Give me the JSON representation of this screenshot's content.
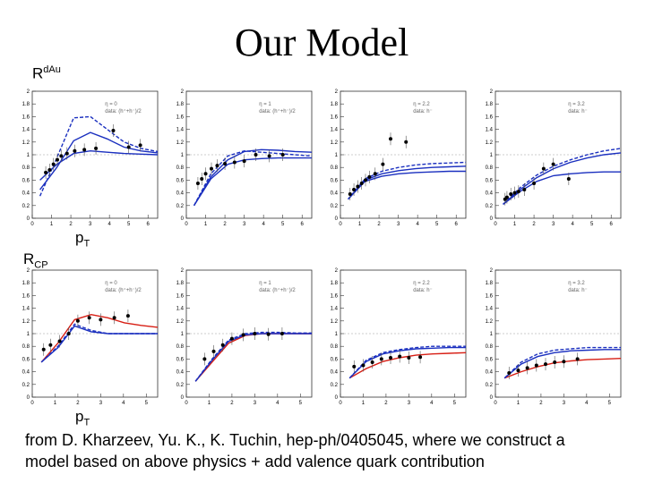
{
  "title": "Our Model",
  "labels": {
    "rdau_main": "R",
    "rdau_sup": "dAu",
    "rcp_main": "R",
    "rcp_sub": "CP",
    "pt_main": "p",
    "pt_sub": "T"
  },
  "caption": {
    "line1": "from D. Kharzeev, Yu. K., K. Tuchin, hep-ph/0405045, where we construct a",
    "line2": "model based on above physics + add valence quark contribution"
  },
  "axis": {
    "y_ticks": [
      "0",
      "0.2",
      "0.4",
      "0.6",
      "0.8",
      "1",
      "1.2",
      "1.4",
      "1.6",
      "1.8",
      "2"
    ],
    "x_ticks": [
      "0",
      "1",
      "2",
      "3",
      "4",
      "5",
      "6"
    ],
    "x_ticks_row2": [
      "0",
      "1",
      "2",
      "3",
      "4",
      "5"
    ]
  },
  "chart_data": [
    {
      "type": "scatter",
      "name": "rdau-eta-0",
      "legend": [
        "η = 0",
        "data: (h⁺+h⁻)/2"
      ],
      "ylim": [
        0,
        2
      ],
      "xlim": [
        0,
        6.5
      ],
      "points": [
        [
          0.7,
          0.72
        ],
        [
          0.9,
          0.76
        ],
        [
          1.1,
          0.85
        ],
        [
          1.3,
          0.92
        ],
        [
          1.5,
          0.98
        ],
        [
          1.8,
          1.02
        ],
        [
          2.2,
          1.06
        ],
        [
          2.7,
          1.08
        ],
        [
          3.3,
          1.1
        ],
        [
          4.2,
          1.38
        ],
        [
          5.0,
          1.12
        ],
        [
          5.6,
          1.15
        ]
      ],
      "curves": [
        {
          "color": "#1a2fbf",
          "style": "solid",
          "y": [
            0.45,
            0.8,
            1.22,
            1.35,
            1.25,
            1.12,
            1.06,
            1.03
          ]
        },
        {
          "color": "#1a2fbf",
          "style": "dashed",
          "y": [
            0.35,
            0.95,
            1.58,
            1.6,
            1.4,
            1.2,
            1.1,
            1.05
          ]
        },
        {
          "color": "#1a2fbf",
          "style": "solid",
          "y": [
            0.6,
            0.85,
            1.02,
            1.06,
            1.04,
            1.02,
            1.01,
            1.0
          ]
        }
      ]
    },
    {
      "type": "scatter",
      "name": "rdau-eta-1",
      "legend": [
        "η = 1",
        "data: (h⁺+h⁻)/2"
      ],
      "ylim": [
        0,
        2
      ],
      "xlim": [
        0,
        6.5
      ],
      "points": [
        [
          0.6,
          0.55
        ],
        [
          0.8,
          0.62
        ],
        [
          1.0,
          0.7
        ],
        [
          1.3,
          0.78
        ],
        [
          1.6,
          0.83
        ],
        [
          2.0,
          0.86
        ],
        [
          2.5,
          0.88
        ],
        [
          3.0,
          0.9
        ],
        [
          3.6,
          1.0
        ],
        [
          4.3,
          0.98
        ],
        [
          5.0,
          1.0
        ]
      ],
      "curves": [
        {
          "color": "#1a2fbf",
          "style": "solid",
          "y": [
            0.2,
            0.65,
            0.92,
            1.05,
            1.08,
            1.07,
            1.05,
            1.04
          ]
        },
        {
          "color": "#1a2fbf",
          "style": "dashed",
          "y": [
            0.2,
            0.7,
            0.98,
            1.06,
            1.04,
            1.02,
            1.0,
            0.98
          ]
        },
        {
          "color": "#1a2fbf",
          "style": "solid",
          "y": [
            0.2,
            0.62,
            0.85,
            0.92,
            0.94,
            0.95,
            0.95,
            0.95
          ]
        }
      ]
    },
    {
      "type": "scatter",
      "name": "rdau-eta-2.2",
      "legend": [
        "η = 2.2",
        "data: h⁻"
      ],
      "ylim": [
        0,
        2
      ],
      "xlim": [
        0,
        6.5
      ],
      "points": [
        [
          0.5,
          0.38
        ],
        [
          0.7,
          0.45
        ],
        [
          0.9,
          0.5
        ],
        [
          1.1,
          0.55
        ],
        [
          1.3,
          0.6
        ],
        [
          1.5,
          0.65
        ],
        [
          1.8,
          0.7
        ],
        [
          2.2,
          0.85
        ],
        [
          2.6,
          1.25
        ],
        [
          3.4,
          1.2
        ]
      ],
      "curves": [
        {
          "color": "#1a2fbf",
          "style": "dashed",
          "y": [
            0.3,
            0.62,
            0.74,
            0.8,
            0.84,
            0.86,
            0.87,
            0.88
          ]
        },
        {
          "color": "#1a2fbf",
          "style": "solid",
          "y": [
            0.3,
            0.6,
            0.7,
            0.75,
            0.78,
            0.8,
            0.81,
            0.82
          ]
        },
        {
          "color": "#1a2fbf",
          "style": "solid",
          "y": [
            0.3,
            0.58,
            0.66,
            0.7,
            0.72,
            0.73,
            0.74,
            0.74
          ]
        }
      ]
    },
    {
      "type": "scatter",
      "name": "rdau-eta-3.2",
      "legend": [
        "η = 3.2",
        "data: h⁻"
      ],
      "ylim": [
        0,
        2
      ],
      "xlim": [
        0,
        6.5
      ],
      "points": [
        [
          0.5,
          0.3
        ],
        [
          0.6,
          0.33
        ],
        [
          0.8,
          0.38
        ],
        [
          1.0,
          0.4
        ],
        [
          1.2,
          0.42
        ],
        [
          1.5,
          0.45
        ],
        [
          2.0,
          0.55
        ],
        [
          2.5,
          0.78
        ],
        [
          3.0,
          0.85
        ],
        [
          3.8,
          0.62
        ]
      ],
      "curves": [
        {
          "color": "#1a2fbf",
          "style": "dashed",
          "y": [
            0.22,
            0.48,
            0.68,
            0.82,
            0.92,
            1.0,
            1.06,
            1.1
          ]
        },
        {
          "color": "#1a2fbf",
          "style": "solid",
          "y": [
            0.22,
            0.45,
            0.64,
            0.78,
            0.88,
            0.95,
            1.0,
            1.03
          ]
        },
        {
          "color": "#1a2fbf",
          "style": "solid",
          "y": [
            0.22,
            0.42,
            0.58,
            0.67,
            0.7,
            0.72,
            0.73,
            0.73
          ]
        }
      ]
    },
    {
      "type": "scatter",
      "name": "rcp-eta-0",
      "legend": [
        "η = 0",
        "data: (h⁺+h⁻)/2"
      ],
      "ylim": [
        0,
        2
      ],
      "xlim": [
        0,
        5.5
      ],
      "points": [
        [
          0.5,
          0.75
        ],
        [
          0.8,
          0.82
        ],
        [
          1.2,
          0.88
        ],
        [
          1.6,
          1.0
        ],
        [
          2.0,
          1.2
        ],
        [
          2.5,
          1.25
        ],
        [
          3.0,
          1.22
        ],
        [
          3.6,
          1.25
        ],
        [
          4.2,
          1.28
        ]
      ],
      "curves": [
        {
          "color": "#d71e14",
          "style": "solid",
          "y": [
            0.55,
            0.85,
            1.22,
            1.3,
            1.25,
            1.17,
            1.13,
            1.1
          ]
        },
        {
          "color": "#1a2fbf",
          "style": "dashed",
          "y": [
            0.55,
            0.8,
            1.15,
            1.05,
            1.0,
            1.0,
            1.0,
            1.0
          ]
        },
        {
          "color": "#1a2fbf",
          "style": "solid",
          "y": [
            0.55,
            0.78,
            1.12,
            1.03,
            1.0,
            1.0,
            1.0,
            1.0
          ]
        }
      ]
    },
    {
      "type": "scatter",
      "name": "rcp-eta-1",
      "legend": [
        "η = 1",
        "data: (h⁺+h⁻)/2"
      ],
      "ylim": [
        0,
        2
      ],
      "xlim": [
        0,
        5.5
      ],
      "points": [
        [
          0.8,
          0.6
        ],
        [
          1.2,
          0.72
        ],
        [
          1.6,
          0.82
        ],
        [
          2.0,
          0.92
        ],
        [
          2.5,
          0.98
        ],
        [
          3.0,
          1.0
        ],
        [
          3.6,
          0.99
        ],
        [
          4.2,
          1.0
        ]
      ],
      "curves": [
        {
          "color": "#d71e14",
          "style": "solid",
          "y": [
            0.25,
            0.55,
            0.85,
            0.97,
            1.0,
            1.0,
            1.0,
            1.0
          ]
        },
        {
          "color": "#1a2fbf",
          "style": "dashed",
          "y": [
            0.25,
            0.6,
            0.9,
            1.0,
            1.02,
            1.02,
            1.01,
            1.01
          ]
        },
        {
          "color": "#1a2fbf",
          "style": "solid",
          "y": [
            0.25,
            0.58,
            0.88,
            0.98,
            1.0,
            1.0,
            1.0,
            1.0
          ]
        }
      ]
    },
    {
      "type": "scatter",
      "name": "rcp-eta-2.2",
      "legend": [
        "η = 2.2",
        "data: h⁻"
      ],
      "ylim": [
        0,
        2
      ],
      "xlim": [
        0,
        5.5
      ],
      "points": [
        [
          0.6,
          0.48
        ],
        [
          1.0,
          0.5
        ],
        [
          1.4,
          0.55
        ],
        [
          1.8,
          0.6
        ],
        [
          2.2,
          0.62
        ],
        [
          2.6,
          0.64
        ],
        [
          3.0,
          0.62
        ],
        [
          3.5,
          0.63
        ]
      ],
      "curves": [
        {
          "color": "#d71e14",
          "style": "solid",
          "y": [
            0.3,
            0.45,
            0.56,
            0.62,
            0.66,
            0.68,
            0.69,
            0.7
          ]
        },
        {
          "color": "#1a2fbf",
          "style": "dashed",
          "y": [
            0.3,
            0.58,
            0.7,
            0.75,
            0.78,
            0.8,
            0.8,
            0.8
          ]
        },
        {
          "color": "#1a2fbf",
          "style": "solid",
          "y": [
            0.3,
            0.56,
            0.68,
            0.73,
            0.76,
            0.77,
            0.78,
            0.78
          ]
        }
      ]
    },
    {
      "type": "scatter",
      "name": "rcp-eta-3.2",
      "legend": [
        "η = 3.2",
        "data: h⁻"
      ],
      "ylim": [
        0,
        2
      ],
      "xlim": [
        0,
        5.5
      ],
      "points": [
        [
          0.6,
          0.38
        ],
        [
          1.0,
          0.42
        ],
        [
          1.4,
          0.46
        ],
        [
          1.8,
          0.5
        ],
        [
          2.2,
          0.52
        ],
        [
          2.6,
          0.55
        ],
        [
          3.0,
          0.56
        ],
        [
          3.6,
          0.6
        ]
      ],
      "curves": [
        {
          "color": "#d71e14",
          "style": "solid",
          "y": [
            0.3,
            0.4,
            0.48,
            0.54,
            0.57,
            0.59,
            0.6,
            0.61
          ]
        },
        {
          "color": "#1a2fbf",
          "style": "dashed",
          "y": [
            0.3,
            0.55,
            0.68,
            0.74,
            0.76,
            0.78,
            0.78,
            0.78
          ]
        },
        {
          "color": "#1a2fbf",
          "style": "solid",
          "y": [
            0.3,
            0.52,
            0.64,
            0.7,
            0.73,
            0.74,
            0.75,
            0.75
          ]
        }
      ]
    }
  ]
}
